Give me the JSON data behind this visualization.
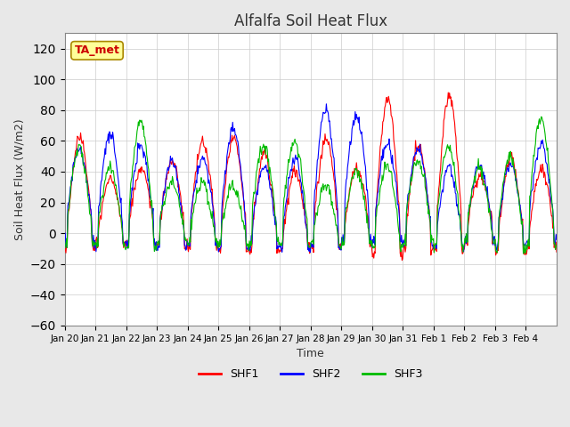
{
  "title": "Alfalfa Soil Heat Flux",
  "xlabel": "Time",
  "ylabel": "Soil Heat Flux (W/m2)",
  "ylim": [
    -60,
    130
  ],
  "yticks": [
    -60,
    -40,
    -20,
    0,
    20,
    40,
    60,
    80,
    100,
    120
  ],
  "x_tick_labels": [
    "Jan 20",
    "Jan 21",
    "Jan 22",
    "Jan 23",
    "Jan 24",
    "Jan 25",
    "Jan 26",
    "Jan 27",
    "Jan 28",
    "Jan 29",
    "Jan 30",
    "Jan 31",
    "Feb 1",
    "Feb 2",
    "Feb 3",
    "Feb 4"
  ],
  "shf1_color": "#FF0000",
  "shf2_color": "#0000FF",
  "shf3_color": "#00BB00",
  "annotation_text": "TA_met",
  "annotation_bg": "#FFFF99",
  "annotation_border": "#AA8800",
  "legend_labels": [
    "SHF1",
    "SHF2",
    "SHF3"
  ],
  "bg_color": "#E8E8E8",
  "plot_bg_color": "#FFFFFF",
  "n_days": 16,
  "points_per_day": 48
}
